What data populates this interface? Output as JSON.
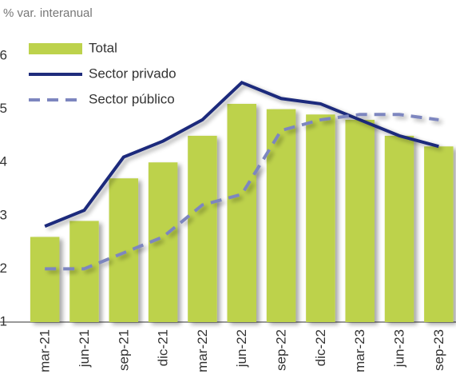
{
  "chart_data": {
    "type": "bar_line",
    "axis_label": "% var. interanual",
    "categories": [
      "mar-21",
      "jun-21",
      "sep-21",
      "dic-21",
      "mar-22",
      "jun-22",
      "sep-22",
      "dic-22",
      "mar-23",
      "jun-23",
      "sep-23"
    ],
    "series": [
      {
        "name": "Total",
        "type": "bar",
        "color": "#bdd24c",
        "values": [
          2.6,
          2.9,
          3.7,
          4.0,
          4.5,
          5.1,
          5.0,
          4.9,
          4.8,
          4.5,
          4.3
        ]
      },
      {
        "name": "Sector privado",
        "type": "line",
        "color": "#1f2c7c",
        "dash": false,
        "values": [
          2.8,
          3.1,
          4.1,
          4.4,
          4.8,
          5.5,
          5.2,
          5.1,
          4.8,
          4.5,
          4.3
        ]
      },
      {
        "name": "Sector público",
        "type": "line",
        "color": "#7d86bf",
        "dash": true,
        "values": [
          2.0,
          2.0,
          2.3,
          2.6,
          3.2,
          3.4,
          4.6,
          4.8,
          4.9,
          4.9,
          4.8
        ]
      }
    ],
    "ylim": [
      1,
      6
    ],
    "yticks": [
      1,
      2,
      3,
      4,
      5,
      6
    ],
    "grid": false,
    "legend": "top-left"
  }
}
